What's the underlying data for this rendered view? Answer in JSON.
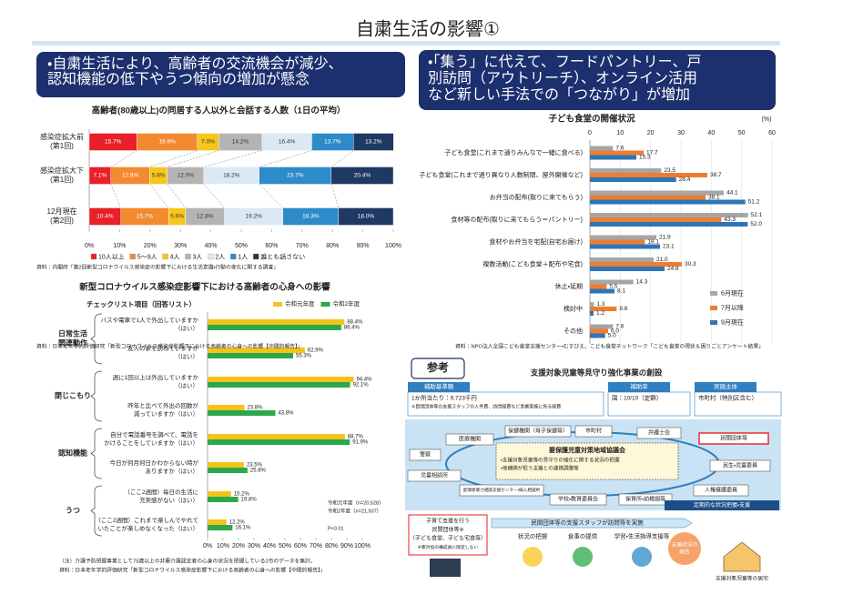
{
  "title": "自粛生活の影響①",
  "bullets": [
    [
      "・自粛生活により、高齢者の交流機会が減少、",
      "認知機能の低下やうつ傾向の増加が懸念"
    ],
    [
      "・「集う」に代えて、フードパントリー、戸",
      "別訪問（アウトリーチ）、オンライン活用",
      "など新しい手法での「つながり」が増加"
    ]
  ],
  "chart_data": [
    {
      "type": "bar",
      "horizontal": true,
      "stacked": true,
      "title": "高齢者(80歳以上)の同居する人以外と会話する人数（1日の平均）",
      "categories": [
        [
          "感染症拡大前",
          "(第1回)"
        ],
        [
          "感染症拡大下",
          "(第1回)"
        ],
        [
          "12月現在",
          "(第2回)"
        ]
      ],
      "series": [
        {
          "name": "10人以上",
          "color": "#e8202a",
          "values": [
            15.7,
            7.1,
            10.4
          ],
          "value_labels": [
            "15.7%",
            "7.1%",
            "10.4%"
          ]
        },
        {
          "name": "5～9人",
          "color": "#f28a30",
          "values": [
            19.9,
            12.8,
            15.7
          ],
          "value_labels": [
            "19.9%",
            "12.8%",
            "15.7%"
          ]
        },
        {
          "name": "4人",
          "color": "#f8c51c",
          "values": [
            7.0,
            5.8,
            5.6
          ],
          "value_labels": [
            "7.0%",
            "5.8%",
            "5.6%"
          ]
        },
        {
          "name": "3人",
          "color": "#b4b4b4",
          "values": [
            14.2,
            12.0,
            12.8
          ],
          "value_labels": [
            "14.2%",
            "12.0%",
            "12.8%"
          ]
        },
        {
          "name": "2人",
          "color": "#dbe9f5",
          "values": [
            16.4,
            18.2,
            19.2
          ],
          "value_labels": [
            "16.4%",
            "18.2%",
            "19.2%"
          ]
        },
        {
          "name": "1人",
          "color": "#2e8bc9",
          "values": [
            13.7,
            23.7,
            18.3
          ],
          "value_labels": [
            "13.7%",
            "23.7%",
            "18.3%"
          ]
        },
        {
          "name": "誰とも話さない",
          "color": "#1f3864",
          "values": [
            13.2,
            20.4,
            18.0
          ],
          "value_labels": [
            "13.2%",
            "20.4%",
            "18.0%"
          ]
        }
      ],
      "xlim": [
        0,
        100
      ],
      "xticks": [
        {
          "value": 0,
          "label": "0%"
        },
        {
          "value": 10,
          "label": "10%"
        },
        {
          "value": 20,
          "label": "20%"
        },
        {
          "value": 30,
          "label": "30%"
        },
        {
          "value": 40,
          "label": "40%"
        },
        {
          "value": 50,
          "label": "50%"
        },
        {
          "value": 60,
          "label": "60%"
        },
        {
          "value": 70,
          "label": "70%"
        },
        {
          "value": 80,
          "label": "80%"
        },
        {
          "value": 90,
          "label": "90%"
        },
        {
          "value": 100,
          "label": "100%"
        }
      ],
      "source": "資料：内閣府「第2回新型コロナウイルス感染症の影響下における生活意識・行動の変化に関する調査」"
    },
    {
      "type": "bar",
      "horizontal": true,
      "stacked": false,
      "title": "新型コロナウイルス感染症影響下における高齢者の心身への影響",
      "subtitle": "チェックリスト項目（回答リスト）",
      "groups": [
        [
          "日常生活",
          "関連動作"
        ],
        [
          "閉じこもり"
        ],
        [
          "認知機能"
        ],
        [
          "うつ"
        ]
      ],
      "categories": [
        [
          "バスや電車で1人で外出していますか",
          "（はい）"
        ],
        [
          "友人の家を訪ねていますか",
          "（はい）"
        ],
        [
          "週に1回以上は外出していますか",
          "（はい）"
        ],
        [
          "昨年と比べて外出の回数が",
          "減っていますか（はい）"
        ],
        [
          "自分で電話番号を調べて、電話を",
          "かけることをしていますか（はい）"
        ],
        [
          "今日が何月何日かわからない時が",
          "ありますか（はい）"
        ],
        [
          "（ここ2週間）毎日の生活に",
          "充実感がない（はい）"
        ],
        [
          "（ここ2週間）これまで楽しんでやれて",
          "いたことが楽しめなくなった（はい）"
        ]
      ],
      "series": [
        {
          "name": "令和元年度",
          "color": "#f5c21b",
          "values": [
            88.4,
            62.9,
            94.4,
            23.8,
            88.7,
            23.5,
            15.2,
            12.2
          ],
          "value_labels": [
            "88.4%",
            "62.9%",
            "94.4%",
            "23.8%",
            "88.7%",
            "23.5%",
            "15.2%",
            "12.2%"
          ]
        },
        {
          "name": "令和2年度",
          "color": "#2ca84a",
          "values": [
            86.4,
            55.3,
            92.1,
            43.8,
            91.9,
            25.8,
            19.8,
            16.1
          ],
          "value_labels": [
            "86.4%",
            "55.3%",
            "92.1%",
            "43.8%",
            "91.9%",
            "25.8%",
            "19.8%",
            "16.1%"
          ]
        }
      ],
      "xlim": [
        0,
        100
      ],
      "xticks": [
        {
          "value": 0,
          "label": "0%"
        },
        {
          "value": 10,
          "label": "10%"
        },
        {
          "value": 20,
          "label": "20%"
        },
        {
          "value": 30,
          "label": "30%"
        },
        {
          "value": 40,
          "label": "40%"
        },
        {
          "value": 50,
          "label": "50%"
        },
        {
          "value": 60,
          "label": "60%"
        },
        {
          "value": 70,
          "label": "70%"
        },
        {
          "value": 80,
          "label": "80%"
        },
        {
          "value": 90,
          "label": "90%"
        },
        {
          "value": 100,
          "label": "100%"
        }
      ],
      "notes": [
        "令和元年度（n=20,528）",
        "令和2年度（n=21,507）",
        "P<0.01"
      ],
      "footnote": "（注）介護予防把握事業として75歳以上の非要介護認定者の心身の状況を把握している2市のデータを集計。",
      "source": "資料：日本老年学的評価研究「新型コロナウイルス感染症影響下における高齢者の心身への影響【中間的報告】」"
    },
    {
      "type": "bar",
      "horizontal": true,
      "stacked": false,
      "title": "子ども食堂の開催状況",
      "unit": "(%)",
      "categories": [
        "子ども食堂(これまで通りみんなで一緒に食べる)",
        "子ども食堂(これまで通り異なり人数制限、屋外開催など)",
        "お弁当の配布(取りに来てもらう)",
        "食材等の配布(取りに来てもらう＝パントリー)",
        "食材やお弁当を宅配(自宅お届け)",
        "複数活動(こども食堂＋配布や宅食)",
        "休止・延期",
        "検討中",
        "その他"
      ],
      "series": [
        {
          "name": "6月現在",
          "color": "#a6a6a6",
          "values": [
            7.6,
            23.5,
            44.1,
            52.1,
            21.9,
            21.0,
            14.3,
            1.3,
            7.6
          ],
          "value_labels": [
            "7.6",
            "23.5",
            "44.1",
            "52.1",
            "21.9",
            "21.0",
            "14.3",
            "1.3",
            "7.6"
          ]
        },
        {
          "name": "7月以降",
          "color": "#ed7d31",
          "values": [
            17.7,
            38.7,
            38.1,
            43.3,
            18.1,
            30.3,
            5.5,
            8.8,
            6.0
          ],
          "value_labels": [
            "17.7",
            "38.7",
            "38.1",
            "43.3",
            "18.1",
            "30.3",
            "5.5",
            "8.8",
            "6.0"
          ]
        },
        {
          "name": "9月現在",
          "color": "#2e75b6",
          "values": [
            15.3,
            28.4,
            51.2,
            52.0,
            23.1,
            24.6,
            8.1,
            1.2,
            5.0
          ],
          "value_labels": [
            "15.3",
            "28.4",
            "51.2",
            "52.0",
            "23.1",
            "24.6",
            "8.1",
            "1.2",
            "5.0"
          ]
        }
      ],
      "xlim": [
        0,
        60
      ],
      "xticks": [
        0,
        10,
        20,
        30,
        40,
        50,
        60
      ],
      "grid": true,
      "source": "資料：NPO法人全国こども食堂支援センター・むすびえ、こども食堂ネットワーク「こども食堂の現状＆困りごとアンケート結果」"
    }
  ],
  "reference": {
    "badge": "参考",
    "title": "支援対象児童等見守り強化事業の創設",
    "boxes": [
      {
        "header": "補助基準額",
        "lines": [
          "1か所当たり：9,723千円",
          "※民間団体等の支援スタッフの人件費、訪問経費など事業実施に係る経費"
        ]
      },
      {
        "header": "補助率",
        "lines": [
          "国：10/10（定額）"
        ]
      },
      {
        "header": "実施主体",
        "lines": [
          "市町村（特別区含む）"
        ]
      }
    ],
    "nodes": [
      "医療機関",
      "保健機関（母子保健等）",
      "市町村",
      "弁護士会",
      "民間団体等",
      "警察",
      "児童相談所",
      "配偶者暴力相談支援センター・婦人相談所",
      "学校・教育委員会",
      "保育所・幼稚園等",
      "人権擁護委員",
      "民生・児童委員"
    ],
    "council": {
      "title": "要保護児童対策地域協議会",
      "lines": [
        "・支援対象児童等の見守りの強化に関する状況の把握",
        "・他機関が担う支援との連携調整等"
      ]
    },
    "cycle": "定期的な状況把握・支援",
    "group": [
      "子育て支援を行う",
      "民間団体等※",
      "（子ども食堂、子ども宅食等）",
      "※要対協の構成員に限定しない"
    ],
    "visit": "民間団体等の支援スタッフが訪問等を実施",
    "activities": [
      "状況の把握",
      "食事の提供",
      "学習・生活指導支援等"
    ],
    "report": [
      "支援状況の",
      "報告"
    ],
    "home": "支援対象児童等の居宅"
  }
}
